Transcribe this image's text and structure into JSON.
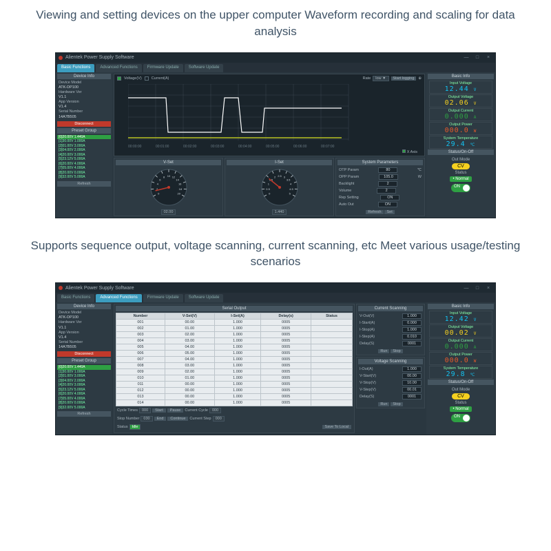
{
  "caption1": "Viewing and setting devices on the upper computer\nWaveform recording and scaling for data analysis",
  "caption2": "Supports sequence output, voltage scanning, current scanning, etc\nMeet various usage/testing scenarios",
  "colors": {
    "bg_dark": "#2a3740",
    "bg_darker": "#1a242b",
    "accent": "#3c9dbf",
    "voltage": "#13c2f0",
    "voltage_out": "#f5d020",
    "current": "#2ea043",
    "power": "#e85a2a",
    "temp": "#13c2f0",
    "danger": "#c0392b"
  },
  "window": {
    "title": "Alientek Power Supply Software",
    "controls": [
      "—",
      "□",
      "×"
    ]
  },
  "tabs": [
    "Basic Functions",
    "Advanced Functions",
    "Firmware Update",
    "Software Update"
  ],
  "device_info": {
    "header": "Device Info",
    "rows": [
      {
        "k": "Device Model",
        "v": "ATK-DP100"
      },
      {
        "k": "Hardware Ver",
        "v": "V1.1"
      },
      {
        "k": "App Version",
        "v": "V1.4"
      },
      {
        "k": "Serial Number",
        "v": "14A7B505"
      }
    ],
    "disconnect": "Disconnect"
  },
  "preset": {
    "header": "Preset Group",
    "items": [
      "[0]20.00V 1.440A",
      "[1]30.00V 1.000A",
      "[2]01.00V 3.000A",
      "[3]04.00V 2.000A",
      "[4]20.00V 3.000A",
      "[5]23.12V 5.000A",
      "[6]20.00V 4.000A",
      "[7]05.00V 4.000A",
      "[8]20.00V 0.000A",
      "[9]32.00V 5.000A"
    ],
    "refresh": "Refresh"
  },
  "chart": {
    "voltage_label": "Voltage(V)",
    "current_label": "Current(A)",
    "rate_label": "Rate",
    "rate_value": "low ▼",
    "start_label": "Start logging",
    "xaxis_label": "X Axis",
    "ticks": [
      "00:00:00",
      "00:01:00",
      "00:02:00",
      "00:03:00",
      "00:04:00",
      "00:05:00",
      "00:06:00",
      "00:07:00"
    ],
    "series": {
      "voltage": {
        "color": "#ffffff",
        "points": [
          [
            0,
            20
          ],
          [
            55,
            20
          ],
          [
            58,
            70
          ],
          [
            135,
            70
          ],
          [
            140,
            20
          ],
          [
            160,
            20
          ],
          [
            165,
            70
          ],
          [
            195,
            70
          ],
          [
            198,
            35
          ],
          [
            310,
            35
          ]
        ]
      },
      "current": {
        "color": "#d6e020",
        "points": [
          [
            0,
            78
          ],
          [
            310,
            78
          ]
        ]
      }
    },
    "grid_color": "#3a4750",
    "background": "#1a242b"
  },
  "gauges": {
    "vset": {
      "header": "V-Set",
      "value": "02.00",
      "min": 0,
      "max": 30,
      "ticks": [
        0,
        2,
        4,
        6,
        8,
        10,
        12,
        14,
        16,
        18,
        20
      ],
      "needle_color": "#c0392b"
    },
    "iset": {
      "header": "I-Set",
      "value": "1.440",
      "min": 0,
      "max": 5,
      "ticks": [
        0,
        0.5,
        1,
        1.5,
        2,
        2.5,
        3,
        3.5,
        4,
        4.5,
        5
      ],
      "needle_color": "#c0392b"
    }
  },
  "sys_params": {
    "header": "System Parameters",
    "rows": [
      {
        "k": "OTP Param",
        "v": "80",
        "deg": "℃"
      },
      {
        "k": "OPP Param",
        "v": "105.0",
        "deg": "W"
      },
      {
        "k": "Backlight",
        "v": "2"
      },
      {
        "k": "Volume",
        "v": "2"
      },
      {
        "k": "Rep Setting",
        "v": "ON"
      },
      {
        "k": "Auto Out",
        "v": "ON"
      }
    ],
    "refresh": "Refresh",
    "set": "Set"
  },
  "basic_info": {
    "header": "Basic Info",
    "items": [
      {
        "lbl": "Input Voltage",
        "num": "12.44",
        "unit": "V",
        "color": "#13c2f0"
      },
      {
        "lbl": "Output Voltage",
        "num": "02.06",
        "unit": "V",
        "color": "#f5d020"
      },
      {
        "lbl": "Output Current",
        "num": "0.000",
        "unit": "A",
        "color": "#2ea043"
      },
      {
        "lbl": "Output Power",
        "num": "000.0",
        "unit": "W",
        "color": "#e85a2a"
      },
      {
        "lbl": "System Temperature",
        "num": "29.4",
        "unit": "℃",
        "color": "#13c2f0"
      }
    ]
  },
  "basic_info2": {
    "items": [
      {
        "lbl": "Input Voltage",
        "num": "12.42",
        "unit": "V",
        "color": "#13c2f0"
      },
      {
        "lbl": "Output Voltage",
        "num": "00.02",
        "unit": "V",
        "color": "#f5d020"
      },
      {
        "lbl": "Output Current",
        "num": "0.000",
        "unit": "A",
        "color": "#2ea043"
      },
      {
        "lbl": "Output Power",
        "num": "000.0",
        "unit": "W",
        "color": "#e85a2a"
      },
      {
        "lbl": "System Temperature",
        "num": "29.8",
        "unit": "℃",
        "color": "#13c2f0"
      }
    ]
  },
  "status": {
    "header": "Status/On-Off",
    "out_mode_label": "Out Mode",
    "cv": "CV",
    "status_label": "Status",
    "normal": "Normal",
    "on": "ON"
  },
  "serial": {
    "header": "Serial Output",
    "columns": [
      "Number",
      "V-Set(V)",
      "I-Set(A)",
      "Delay(s)",
      "Status"
    ],
    "rows": [
      [
        "001",
        "00.00",
        "1.000",
        "0005",
        ""
      ],
      [
        "002",
        "01.00",
        "1.000",
        "0005",
        ""
      ],
      [
        "003",
        "02.00",
        "1.000",
        "0005",
        ""
      ],
      [
        "004",
        "03.00",
        "1.000",
        "0005",
        ""
      ],
      [
        "005",
        "04.00",
        "1.000",
        "0005",
        ""
      ],
      [
        "006",
        "05.00",
        "1.000",
        "0005",
        ""
      ],
      [
        "007",
        "04.00",
        "1.000",
        "0005",
        ""
      ],
      [
        "008",
        "03.00",
        "1.000",
        "0005",
        ""
      ],
      [
        "009",
        "02.00",
        "1.000",
        "0005",
        ""
      ],
      [
        "010",
        "01.00",
        "1.000",
        "0005",
        ""
      ],
      [
        "011",
        "00.00",
        "1.000",
        "0005",
        ""
      ],
      [
        "012",
        "00.00",
        "1.000",
        "0005",
        ""
      ],
      [
        "013",
        "00.00",
        "1.000",
        "0005",
        ""
      ],
      [
        "014",
        "00.00",
        "1.000",
        "0005",
        ""
      ]
    ],
    "cycle_times_label": "Cycle Times",
    "cycle_times": "000",
    "stop_number_label": "Stop Number",
    "stop_number": "030",
    "btns": [
      "Start",
      "Pause",
      "End",
      "Continue"
    ],
    "current_cycle_label": "Current Cycle",
    "current_cycle": "000",
    "current_step_label": "Current Step",
    "current_step": "000",
    "status_label": "Status",
    "status_val": "Idle",
    "save_local": "Save To Local"
  },
  "current_scan": {
    "header": "Current Scanning",
    "rows": [
      {
        "k": "V-Out(V)",
        "v": "1.000"
      },
      {
        "k": "I-Start(A)",
        "v": "0.000"
      },
      {
        "k": "I-Stop(A)",
        "v": "1.000"
      },
      {
        "k": "I-Step(A)",
        "v": "0.010"
      },
      {
        "k": "Delay(S)",
        "v": "0001"
      }
    ],
    "run": "Run",
    "stop": "Stop"
  },
  "voltage_scan": {
    "header": "Voltage Scanning",
    "rows": [
      {
        "k": "I-Out(A)",
        "v": "1.000"
      },
      {
        "k": "V-Start(V)",
        "v": "00.00"
      },
      {
        "k": "V-Stop(V)",
        "v": "10.00"
      },
      {
        "k": "V-Step(V)",
        "v": "00.01"
      },
      {
        "k": "Delay(S)",
        "v": "0001"
      }
    ],
    "run": "Run",
    "stop": "Stop"
  }
}
